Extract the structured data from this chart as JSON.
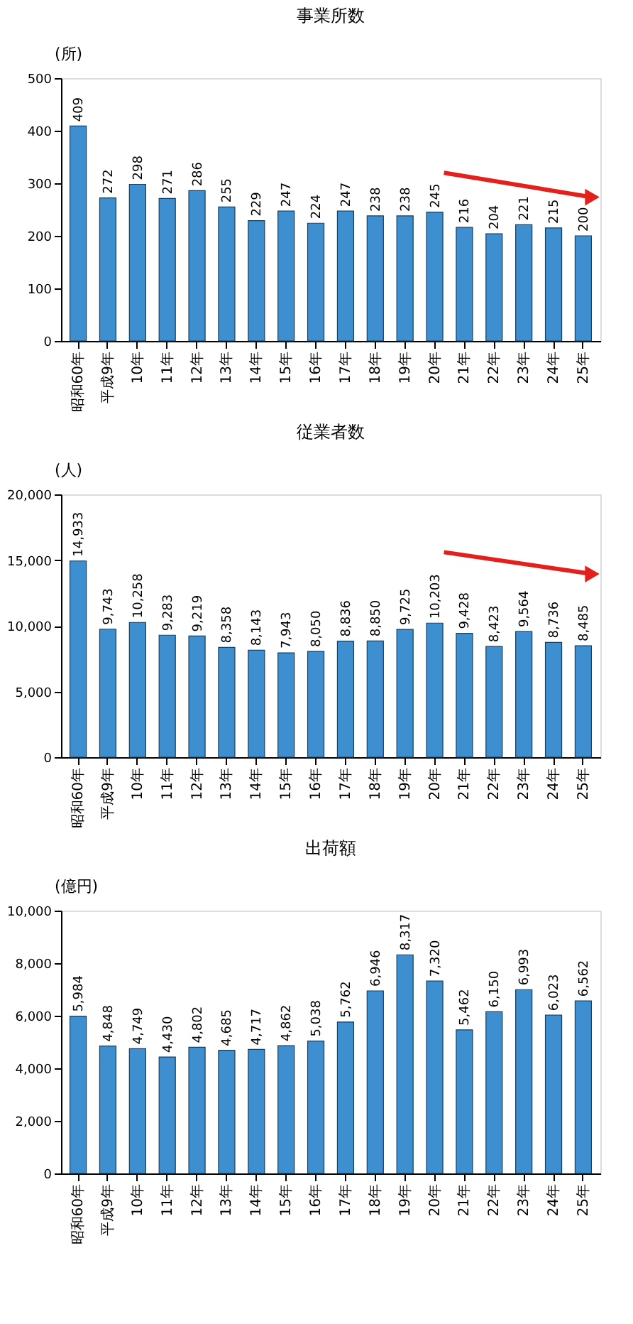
{
  "chart_data": [
    {
      "type": "bar",
      "title": "事業所数",
      "ylabel": "(所)",
      "color": "#3d8fcf",
      "categories": [
        "昭和60年",
        "平成9年",
        "10年",
        "11年",
        "12年",
        "13年",
        "14年",
        "15年",
        "16年",
        "17年",
        "18年",
        "19年",
        "20年",
        "21年",
        "22年",
        "23年",
        "24年",
        "25年"
      ],
      "values": [
        409,
        272,
        298,
        271,
        286,
        255,
        229,
        247,
        224,
        247,
        238,
        238,
        245,
        216,
        204,
        221,
        215,
        200
      ],
      "value_labels": [
        "409",
        "272",
        "298",
        "271",
        "286",
        "255",
        "229",
        "247",
        "224",
        "247",
        "238",
        "238",
        "245",
        "216",
        "204",
        "221",
        "215",
        "200"
      ],
      "ylim": [
        0,
        500
      ],
      "yticks": [
        0,
        100,
        200,
        300,
        400,
        500
      ],
      "grid": false
    },
    {
      "type": "bar",
      "title": "従業者数",
      "ylabel": "(人)",
      "color": "#3d8fcf",
      "categories": [
        "昭和60年",
        "平成9年",
        "10年",
        "11年",
        "12年",
        "13年",
        "14年",
        "15年",
        "16年",
        "17年",
        "18年",
        "19年",
        "20年",
        "21年",
        "22年",
        "23年",
        "24年",
        "25年"
      ],
      "values": [
        14933,
        9743,
        10258,
        9283,
        9219,
        8358,
        8143,
        7943,
        8050,
        8836,
        8850,
        9725,
        10203,
        9428,
        8423,
        9564,
        8736,
        8485
      ],
      "value_labels": [
        "14,933",
        "9,743",
        "10,258",
        "9,283",
        "9,219",
        "8,358",
        "8,143",
        "7,943",
        "8,050",
        "8,836",
        "8,850",
        "9,725",
        "10,203",
        "9,428",
        "8,423",
        "9,564",
        "8,736",
        "8,485"
      ],
      "ylim": [
        0,
        20000
      ],
      "yticks": [
        0,
        {
          "value": 5000,
          "label": "5,000"
        },
        {
          "value": 10000,
          "label": "10,000"
        },
        {
          "value": 15000,
          "label": "15,000"
        },
        {
          "value": 20000,
          "label": "20,000"
        }
      ],
      "grid": false
    },
    {
      "type": "bar",
      "title": "出荷額",
      "ylabel": "(億円)",
      "color": "#3d8fcf",
      "categories": [
        "昭和60年",
        "平成9年",
        "10年",
        "11年",
        "12年",
        "13年",
        "14年",
        "15年",
        "16年",
        "17年",
        "18年",
        "19年",
        "20年",
        "21年",
        "22年",
        "23年",
        "24年",
        "25年"
      ],
      "values": [
        5984,
        4848,
        4749,
        4430,
        4802,
        4685,
        4717,
        4862,
        5038,
        5762,
        6946,
        8317,
        7320,
        5462,
        6150,
        6993,
        6023,
        6562
      ],
      "value_labels": [
        "5,984",
        "4,848",
        "4,749",
        "4,430",
        "4,802",
        "4,685",
        "4,717",
        "4,862",
        "5,038",
        "5,762",
        "6,946",
        "8,317",
        "7,320",
        "5,462",
        "6,150",
        "6,993",
        "6,023",
        "6,562"
      ],
      "ylim": [
        0,
        10000
      ],
      "yticks": [
        0,
        {
          "value": 2000,
          "label": "2,000"
        },
        {
          "value": 4000,
          "label": "4,000"
        },
        {
          "value": 6000,
          "label": "6,000"
        },
        {
          "value": 8000,
          "label": "8,000"
        },
        {
          "value": 10000,
          "label": "10,000"
        }
      ],
      "grid": false
    }
  ]
}
